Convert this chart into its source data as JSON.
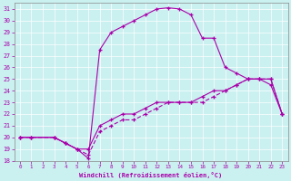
{
  "xlabel": "Windchill (Refroidissement éolien,°C)",
  "bg_color": "#caf0f0",
  "line_color": "#aa00aa",
  "xlim": [
    -0.5,
    23.5
  ],
  "ylim": [
    18,
    31.5
  ],
  "yticks": [
    18,
    19,
    20,
    21,
    22,
    23,
    24,
    25,
    26,
    27,
    28,
    29,
    30,
    31
  ],
  "xticks": [
    0,
    1,
    2,
    3,
    4,
    5,
    6,
    7,
    8,
    9,
    10,
    11,
    12,
    13,
    14,
    15,
    16,
    17,
    18,
    19,
    20,
    21,
    22,
    23
  ],
  "line3_x": [
    0,
    1,
    3,
    4,
    5,
    6,
    7,
    8,
    9,
    10,
    11,
    12,
    13,
    14,
    15,
    16,
    17,
    18,
    19,
    20,
    21,
    22,
    23
  ],
  "line3_y": [
    20,
    20,
    20,
    19.5,
    19,
    18.2,
    27.5,
    29,
    29.5,
    30,
    30.5,
    31,
    31.1,
    31,
    30.5,
    28.5,
    28.5,
    26,
    25.5,
    25,
    25,
    24.5,
    22
  ],
  "line1_x": [
    0,
    1,
    3,
    4,
    5,
    6,
    7,
    8,
    9,
    10,
    11,
    12,
    13,
    14,
    15,
    16,
    17,
    18,
    19,
    20,
    21,
    22,
    23
  ],
  "line1_y": [
    20,
    20,
    20,
    19.5,
    19,
    19,
    21,
    21.5,
    22,
    22,
    22.5,
    23,
    23,
    23,
    23,
    23.5,
    24,
    24,
    24.5,
    25,
    25,
    25,
    22
  ],
  "line2_x": [
    0,
    1,
    3,
    4,
    5,
    6,
    7,
    8,
    9,
    10,
    11,
    12,
    13,
    14,
    15,
    16,
    17,
    18,
    19,
    20,
    21,
    22,
    23
  ],
  "line2_y": [
    20,
    20,
    20,
    19.5,
    19,
    18.5,
    20.5,
    21,
    21.5,
    21.5,
    22,
    22.5,
    23,
    23,
    23,
    23,
    23.5,
    24,
    24.5,
    25,
    25,
    25,
    22
  ]
}
